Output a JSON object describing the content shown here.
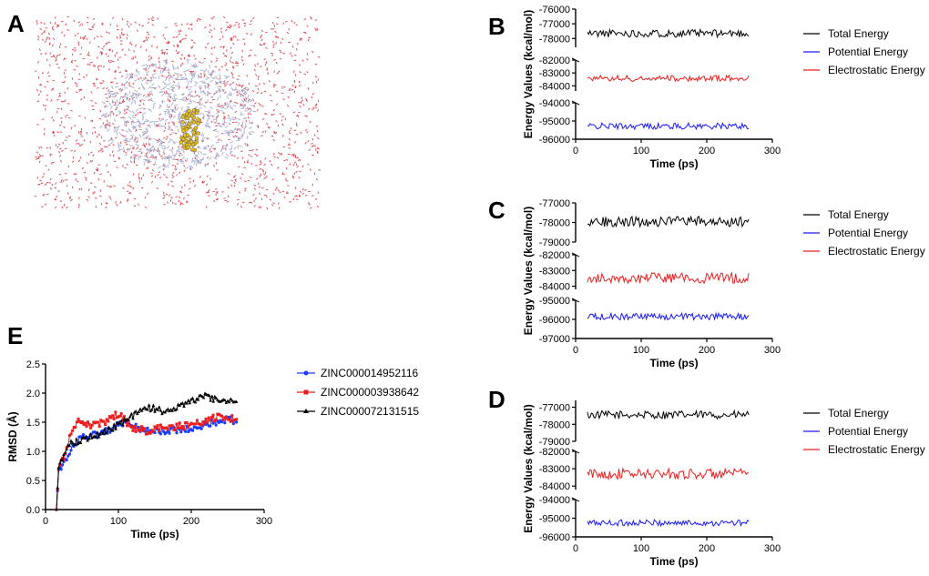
{
  "panels": {
    "A": "A",
    "B": "B",
    "C": "C",
    "D": "D",
    "E": "E"
  },
  "structure_render": {
    "description_label": "molecular dynamics simulation box",
    "water_color": "#d9202a",
    "protein_color": "#9aa0c8",
    "ligand_color": "#e8c020"
  },
  "chart_data": [
    {
      "id": "B",
      "type": "line",
      "xlabel": "Time (ps)",
      "ylabel": "Energy Values (kcal/mol)",
      "xlim": [
        0,
        300
      ],
      "xticks": [
        "0",
        "100",
        "200",
        "300"
      ],
      "segments": [
        {
          "ylim": [
            -78600,
            -76000
          ],
          "ticks": [
            "-76000",
            "-77000",
            "-78000"
          ],
          "tickvals": [
            -76000,
            -77000,
            -78000
          ]
        },
        {
          "ylim": [
            -84400,
            -82000
          ],
          "ticks": [
            "-82000",
            "-83000",
            "-84000"
          ],
          "tickvals": [
            -82000,
            -83000,
            -84000
          ]
        },
        {
          "ylim": [
            -96000,
            -94000
          ],
          "ticks": [
            "-94000",
            "-95000",
            "-96000"
          ],
          "tickvals": [
            -94000,
            -95000,
            -96000
          ]
        }
      ],
      "series": [
        {
          "name": "Total Energy",
          "color": "#000000",
          "segment": 0,
          "mean": -77650,
          "amp": 260
        },
        {
          "name": "Potential Energy",
          "color": "#1a1aff",
          "segment": 2,
          "mean": -95280,
          "amp": 170
        },
        {
          "name": "Electrostatic Energy",
          "color": "#ee1c1c",
          "segment": 1,
          "mean": -83420,
          "amp": 230
        }
      ]
    },
    {
      "id": "C",
      "type": "line",
      "xlabel": "Time (ps)",
      "ylabel": "Energy Values (kcal/mol)",
      "xlim": [
        0,
        300
      ],
      "xticks": [
        "0",
        "100",
        "200",
        "300"
      ],
      "segments": [
        {
          "ylim": [
            -79000,
            -77000
          ],
          "ticks": [
            "-77000",
            "-78000",
            "-79000"
          ],
          "tickvals": [
            -77000,
            -78000,
            -79000
          ]
        },
        {
          "ylim": [
            -84200,
            -82000
          ],
          "ticks": [
            "-82000",
            "-83000",
            "-84000"
          ],
          "tickvals": [
            -82000,
            -83000,
            -84000
          ]
        },
        {
          "ylim": [
            -97000,
            -95000
          ],
          "ticks": [
            "-95000",
            "-96000",
            "-97000"
          ],
          "tickvals": [
            -95000,
            -96000,
            -97000
          ]
        }
      ],
      "series": [
        {
          "name": "Total Energy",
          "color": "#000000",
          "segment": 0,
          "mean": -77950,
          "amp": 260
        },
        {
          "name": "Potential Energy",
          "color": "#1a1aff",
          "segment": 2,
          "mean": -95850,
          "amp": 170
        },
        {
          "name": "Electrostatic Energy",
          "color": "#ee1c1c",
          "segment": 1,
          "mean": -83480,
          "amp": 330
        }
      ]
    },
    {
      "id": "D",
      "type": "line",
      "xlabel": "Time (ps)",
      "ylabel": "Energy Values (kcal/mol)",
      "xlim": [
        0,
        300
      ],
      "xticks": [
        "0",
        "100",
        "200",
        "300"
      ],
      "segments": [
        {
          "ylim": [
            -79000,
            -76600
          ],
          "ticks": [
            "-77000",
            "-78000",
            "-79000"
          ],
          "tickvals": [
            -77000,
            -78000,
            -79000
          ]
        },
        {
          "ylim": [
            -84200,
            -82000
          ],
          "ticks": [
            "-82000",
            "-83000",
            "-84000"
          ],
          "tickvals": [
            -82000,
            -83000,
            -84000
          ]
        },
        {
          "ylim": [
            -96000,
            -94000
          ],
          "ticks": [
            "-94000",
            "-95000",
            "-96000"
          ],
          "tickvals": [
            -94000,
            -95000,
            -96000
          ]
        }
      ],
      "series": [
        {
          "name": "Total Energy",
          "color": "#000000",
          "segment": 0,
          "mean": -77450,
          "amp": 240
        },
        {
          "name": "Potential Energy",
          "color": "#1a1aff",
          "segment": 2,
          "mean": -95250,
          "amp": 170
        },
        {
          "name": "Electrostatic Energy",
          "color": "#ee1c1c",
          "segment": 1,
          "mean": -83300,
          "amp": 300
        }
      ]
    },
    {
      "id": "E",
      "type": "line",
      "title": "",
      "xlabel": "Time (ps)",
      "ylabel": "RMSD (Å)",
      "xlim": [
        0,
        300
      ],
      "ylim": [
        0,
        2.5
      ],
      "xticks": [
        "0",
        "100",
        "200",
        "300"
      ],
      "yticks": [
        "0.0",
        "0.5",
        "1.0",
        "1.5",
        "2.0",
        "2.5"
      ],
      "ytickvals": [
        0.0,
        0.5,
        1.0,
        1.5,
        2.0,
        2.5
      ],
      "series": [
        {
          "name": "ZINC000014952116",
          "color": "#1a3cff",
          "marker": "circle",
          "x": [
            15,
            18,
            25,
            35,
            50,
            75,
            100,
            110,
            130,
            160,
            200,
            230,
            250,
            262
          ],
          "y": [
            0.0,
            0.65,
            0.8,
            1.05,
            1.25,
            1.3,
            1.45,
            1.5,
            1.4,
            1.35,
            1.4,
            1.5,
            1.55,
            1.5
          ]
        },
        {
          "name": "ZINC000003938642",
          "color": "#ee1c1c",
          "marker": "square",
          "x": [
            15,
            18,
            25,
            35,
            45,
            60,
            80,
            100,
            120,
            140,
            160,
            200,
            240,
            262
          ],
          "y": [
            0.0,
            0.7,
            0.9,
            1.3,
            1.5,
            1.45,
            1.5,
            1.65,
            1.4,
            1.35,
            1.4,
            1.45,
            1.6,
            1.55
          ]
        },
        {
          "name": "ZINC000072131515",
          "color": "#000000",
          "marker": "triangle",
          "x": [
            15,
            18,
            25,
            35,
            50,
            75,
            100,
            120,
            140,
            160,
            180,
            200,
            215,
            240,
            262
          ],
          "y": [
            0.0,
            0.75,
            0.95,
            1.15,
            1.2,
            1.3,
            1.45,
            1.6,
            1.75,
            1.7,
            1.75,
            1.85,
            1.95,
            1.88,
            1.85
          ]
        }
      ]
    }
  ]
}
